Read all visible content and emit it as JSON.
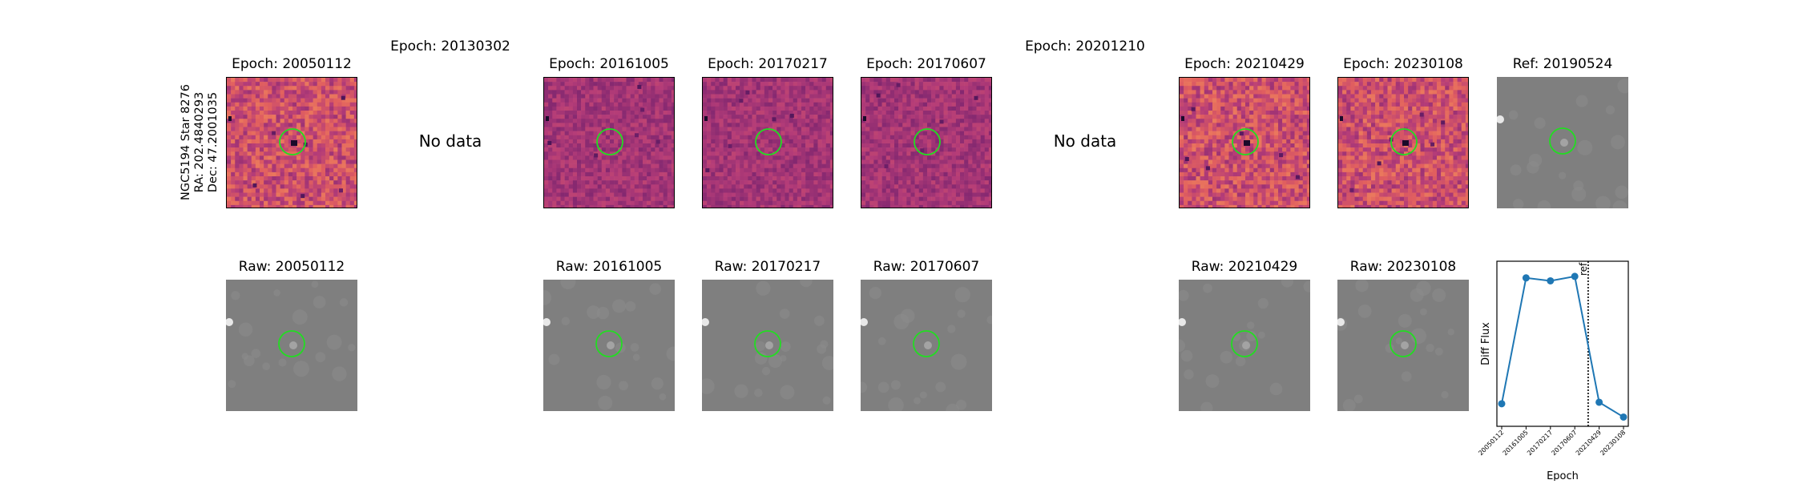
{
  "star_label": {
    "line1": "NGC5194 Star 8276",
    "line2": "RA: 202.4840293",
    "line3": "Dec: 47.2001035"
  },
  "columns": [
    {
      "epoch": "20050112",
      "diff_title": "Epoch: 20050112",
      "raw_title": "Raw: 20050112",
      "has_data": true
    },
    {
      "epoch": "20130302",
      "diff_title": "Epoch: 20130302",
      "raw_title": "",
      "has_data": false,
      "no_data_text": "No data"
    },
    {
      "epoch": "20161005",
      "diff_title": "Epoch: 20161005",
      "raw_title": "Raw: 20161005",
      "has_data": true
    },
    {
      "epoch": "20170217",
      "diff_title": "Epoch: 20170217",
      "raw_title": "Raw: 20170217",
      "has_data": true
    },
    {
      "epoch": "20170607",
      "diff_title": "Epoch: 20170607",
      "raw_title": "Raw: 20170607",
      "has_data": true
    },
    {
      "epoch": "20201210",
      "diff_title": "Epoch: 20201210",
      "raw_title": "",
      "has_data": false,
      "no_data_text": "No data"
    },
    {
      "epoch": "20210429",
      "diff_title": "Epoch: 20210429",
      "raw_title": "Raw: 20210429",
      "has_data": true
    },
    {
      "epoch": "20230108",
      "diff_title": "Epoch: 20230108",
      "raw_title": "Raw: 20230108",
      "has_data": true
    }
  ],
  "reference": {
    "title": "Ref: 20190524"
  },
  "colors": {
    "circle": "#22dd22",
    "line": "#1f77b4",
    "diff_base": "#b8407a",
    "raw_base": "#7f7f7f"
  },
  "chart_data": {
    "type": "line",
    "x": [
      "20050112",
      "20161005",
      "20170217",
      "20170607",
      "20210429",
      "20230108"
    ],
    "series": [
      {
        "values": [
          0.12,
          0.97,
          0.95,
          0.98,
          0.13,
          0.03
        ]
      }
    ],
    "ylabel": "Diff Flux",
    "xlabel": "Epoch",
    "ylim": [
      0,
      1.05
    ],
    "ref_marker": {
      "label": "ref",
      "position_between": [
        "20170607",
        "20210429"
      ]
    },
    "yticks_shown": false,
    "grid": false
  }
}
